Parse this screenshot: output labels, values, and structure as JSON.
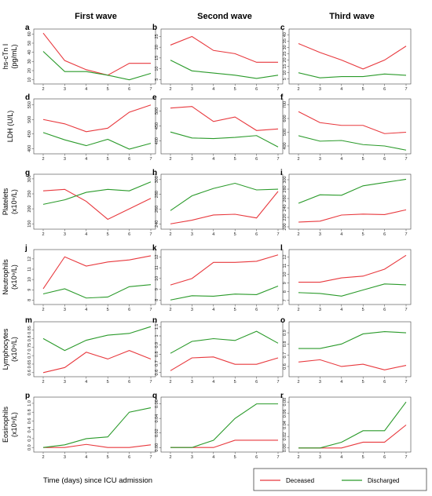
{
  "colors": {
    "deceased": "#e8383d",
    "discharged": "#2a9a2a",
    "panel_bg": "#ffffff",
    "axis": "#444444"
  },
  "columns": [
    "First wave",
    "Second wave",
    "Third wave"
  ],
  "x_axis_label": "Time (days) since ICU admission",
  "legend": {
    "deceased": "Deceased",
    "discharged": "Discharged"
  },
  "row_labels": [
    [
      "hs-cTn I",
      "(pg/mL)"
    ],
    [
      "LDH (U/L)"
    ],
    [
      "Platelets",
      "(x10⁹/L)"
    ],
    [
      "Neutrophils",
      "(x10⁹/L)"
    ],
    [
      "Lymphocytes",
      "(x10⁹/L)"
    ],
    [
      "Eosinophils",
      "(x10⁹/L)"
    ]
  ],
  "chart_data": [
    {
      "letter": "a",
      "type": "line",
      "x": [
        2,
        3,
        4,
        5,
        6,
        7
      ],
      "ylim": [
        8,
        62
      ],
      "yticks": [
        "10",
        "20",
        "30",
        "40",
        "50",
        "60"
      ],
      "series": [
        {
          "name": "Deceased",
          "values": [
            61,
            31,
            21,
            15,
            28,
            28
          ]
        },
        {
          "name": "Discharged",
          "values": [
            41,
            19,
            19,
            15,
            10,
            17
          ]
        }
      ]
    },
    {
      "letter": "b",
      "type": "line",
      "x": [
        2,
        3,
        4,
        5,
        6,
        7
      ],
      "ylim": [
        4,
        27
      ],
      "yticks": [
        "5",
        "10",
        "15",
        "20",
        "25"
      ],
      "series": [
        {
          "name": "Deceased",
          "values": [
            21,
            25,
            18.5,
            17,
            13,
            13
          ]
        },
        {
          "name": "Discharged",
          "values": [
            14,
            9,
            8,
            7,
            5.5,
            7
          ]
        }
      ]
    },
    {
      "letter": "c",
      "type": "line",
      "x": [
        2,
        3,
        4,
        5,
        6,
        7
      ],
      "ylim": [
        3,
        42
      ],
      "yticks": [
        "5",
        "10",
        "15",
        "20",
        "25",
        "30",
        "35",
        "40"
      ],
      "series": [
        {
          "name": "Deceased",
          "values": [
            33,
            26,
            20,
            13,
            20,
            31
          ]
        },
        {
          "name": "Discharged",
          "values": [
            10,
            6,
            7,
            7,
            9,
            8
          ]
        }
      ]
    },
    {
      "letter": "d",
      "type": "line",
      "x": [
        2,
        3,
        4,
        5,
        6,
        7
      ],
      "ylim": [
        390,
        560
      ],
      "yticks": [
        "400",
        "450",
        "500",
        "550"
      ],
      "series": [
        {
          "name": "Deceased",
          "values": [
            500,
            485,
            458,
            470,
            525,
            550
          ]
        },
        {
          "name": "Discharged",
          "values": [
            455,
            430,
            410,
            432,
            398,
            418
          ]
        }
      ]
    },
    {
      "letter": "e",
      "type": "line",
      "x": [
        2,
        3,
        4,
        5,
        6,
        7
      ],
      "ylim": [
        365,
        530
      ],
      "yticks": [
        "400",
        "450",
        "500"
      ],
      "series": [
        {
          "name": "Deceased",
          "values": [
            510,
            515,
            465,
            480,
            435,
            440
          ]
        },
        {
          "name": "Discharged",
          "values": [
            430,
            410,
            408,
            412,
            418,
            380
          ]
        }
      ]
    },
    {
      "letter": "f",
      "type": "line",
      "x": [
        2,
        3,
        4,
        5,
        6,
        7
      ],
      "ylim": [
        360,
        720
      ],
      "yticks": [
        "400",
        "500",
        "600",
        "700"
      ],
      "series": [
        {
          "name": "Deceased",
          "values": [
            650,
            570,
            550,
            550,
            490,
            500
          ]
        },
        {
          "name": "Discharged",
          "values": [
            475,
            435,
            440,
            410,
            400,
            370
          ]
        }
      ]
    },
    {
      "letter": "g",
      "type": "line",
      "x": [
        2,
        3,
        4,
        5,
        6,
        7
      ],
      "ylim": [
        140,
        305
      ],
      "yticks": [
        "150",
        "200",
        "250",
        "300"
      ],
      "series": [
        {
          "name": "Deceased",
          "values": [
            260,
            265,
            225,
            165,
            200,
            235
          ]
        },
        {
          "name": "Discharged",
          "values": [
            215,
            230,
            255,
            265,
            260,
            290
          ]
        }
      ]
    },
    {
      "letter": "h",
      "type": "line",
      "x": [
        2,
        3,
        4,
        5,
        6,
        7
      ],
      "ylim": [
        236,
        303
      ],
      "yticks": [
        "240",
        "260",
        "280",
        "300"
      ],
      "series": [
        {
          "name": "Deceased",
          "values": [
            240,
            245,
            252,
            253,
            248,
            284
          ]
        },
        {
          "name": "Discharged",
          "values": [
            258,
            278,
            288,
            295,
            286,
            287
          ]
        }
      ]
    },
    {
      "letter": "i",
      "type": "line",
      "x": [
        2,
        3,
        4,
        5,
        6,
        7
      ],
      "ylim": [
        200,
        305
      ],
      "yticks": [
        "200",
        "220",
        "240",
        "260",
        "280",
        "300"
      ],
      "series": [
        {
          "name": "Deceased",
          "values": [
            210,
            212,
            225,
            227,
            226,
            236
          ]
        },
        {
          "name": "Discharged",
          "values": [
            250,
            268,
            267,
            287,
            294,
            301
          ]
        }
      ]
    },
    {
      "letter": "j",
      "type": "line",
      "x": [
        2,
        3,
        4,
        5,
        6,
        7
      ],
      "ylim": [
        7.8,
        12.6
      ],
      "yticks": [
        "8",
        "9",
        "10",
        "11",
        "12"
      ],
      "series": [
        {
          "name": "Deceased",
          "values": [
            9.1,
            12.2,
            11.3,
            11.7,
            11.9,
            12.3
          ]
        },
        {
          "name": "Discharged",
          "values": [
            8.6,
            9.1,
            8.2,
            8.3,
            9.3,
            9.5
          ]
        }
      ]
    },
    {
      "letter": "k",
      "type": "line",
      "x": [
        2,
        3,
        4,
        5,
        6,
        7
      ],
      "ylim": [
        7.8,
        12.4
      ],
      "yticks": [
        "8",
        "9",
        "10",
        "11",
        "12"
      ],
      "series": [
        {
          "name": "Deceased",
          "values": [
            9.4,
            10,
            11.5,
            11.5,
            11.6,
            12.2
          ]
        },
        {
          "name": "Discharged",
          "values": [
            8.0,
            8.4,
            8.35,
            8.55,
            8.5,
            9.3
          ]
        }
      ]
    },
    {
      "letter": "l",
      "type": "line",
      "x": [
        2,
        3,
        4,
        5,
        6,
        7
      ],
      "ylim": [
        6.8,
        12.5
      ],
      "yticks": [
        "7",
        "8",
        "9",
        "10",
        "11",
        "12"
      ],
      "series": [
        {
          "name": "Deceased",
          "values": [
            9.1,
            9.1,
            9.6,
            9.8,
            10.6,
            12.2
          ]
        },
        {
          "name": "Discharged",
          "values": [
            7.9,
            7.8,
            7.5,
            8.2,
            8.9,
            8.8
          ]
        }
      ]
    },
    {
      "letter": "m",
      "type": "line",
      "x": [
        2,
        3,
        4,
        5,
        6,
        7
      ],
      "ylim": [
        0.59,
        0.88
      ],
      "yticks": [
        "0.6",
        "0.65",
        "0.7",
        "0.75",
        "0.8",
        "0.85"
      ],
      "series": [
        {
          "name": "Deceased",
          "values": [
            0.6,
            0.63,
            0.72,
            0.68,
            0.73,
            0.68
          ]
        },
        {
          "name": "Discharged",
          "values": [
            0.8,
            0.73,
            0.79,
            0.82,
            0.83,
            0.87
          ]
        }
      ]
    },
    {
      "letter": "n",
      "type": "line",
      "x": [
        2,
        3,
        4,
        5,
        6,
        7
      ],
      "ylim": [
        0.58,
        1.12
      ],
      "yticks": [
        "0.6",
        "0.7",
        "0.8",
        "0.9",
        "1",
        "1.1"
      ],
      "series": [
        {
          "name": "Deceased",
          "values": [
            0.62,
            0.76,
            0.77,
            0.69,
            0.69,
            0.76
          ]
        },
        {
          "name": "Discharged",
          "values": [
            0.81,
            0.94,
            0.97,
            0.95,
            1.05,
            0.92
          ]
        }
      ]
    },
    {
      "letter": "o",
      "type": "line",
      "x": [
        2,
        3,
        4,
        5,
        6,
        7
      ],
      "ylim": [
        0.53,
        0.97
      ],
      "yticks": [
        "0.6",
        "0.7",
        "0.8",
        "0.9"
      ],
      "series": [
        {
          "name": "Deceased",
          "values": [
            0.64,
            0.66,
            0.6,
            0.62,
            0.57,
            0.61
          ]
        },
        {
          "name": "Discharged",
          "values": [
            0.76,
            0.76,
            0.8,
            0.89,
            0.91,
            0.9
          ]
        }
      ]
    },
    {
      "letter": "p",
      "type": "line",
      "x": [
        2,
        3,
        4,
        5,
        6,
        7
      ],
      "ylim": [
        -0.05,
        1.07
      ],
      "yticks": [
        "0.0",
        "0.2",
        "0.4",
        "0.6",
        "0.8",
        "1.0"
      ],
      "series": [
        {
          "name": "Deceased",
          "values": [
            0,
            0,
            0.07,
            0,
            0,
            0.06
          ]
        },
        {
          "name": "Discharged",
          "values": [
            0,
            0.06,
            0.2,
            0.24,
            0.8,
            0.9
          ]
        }
      ]
    },
    {
      "letter": "q",
      "type": "line",
      "x": [
        2,
        3,
        4,
        5,
        6,
        7
      ],
      "ylim": [
        -0.003,
        0.065
      ],
      "yticks": [
        "0.00",
        "0.02",
        "0.04",
        "0.06"
      ],
      "series": [
        {
          "name": "Deceased",
          "values": [
            0,
            0,
            0,
            0.01,
            0.01,
            0.01
          ]
        },
        {
          "name": "Discharged",
          "values": [
            0,
            0,
            0.01,
            0.04,
            0.06,
            0.06
          ]
        }
      ]
    },
    {
      "letter": "r",
      "type": "line",
      "x": [
        2,
        3,
        4,
        5,
        6,
        7
      ],
      "ylim": [
        -0.003,
        0.083
      ],
      "yticks": [
        "0.00",
        "0.02",
        "0.04",
        "0.06",
        "0.08"
      ],
      "series": [
        {
          "name": "Deceased",
          "values": [
            0,
            0,
            0,
            0.01,
            0.01,
            0.04
          ]
        },
        {
          "name": "Discharged",
          "values": [
            0,
            0,
            0.01,
            0.03,
            0.03,
            0.08
          ]
        }
      ]
    }
  ]
}
